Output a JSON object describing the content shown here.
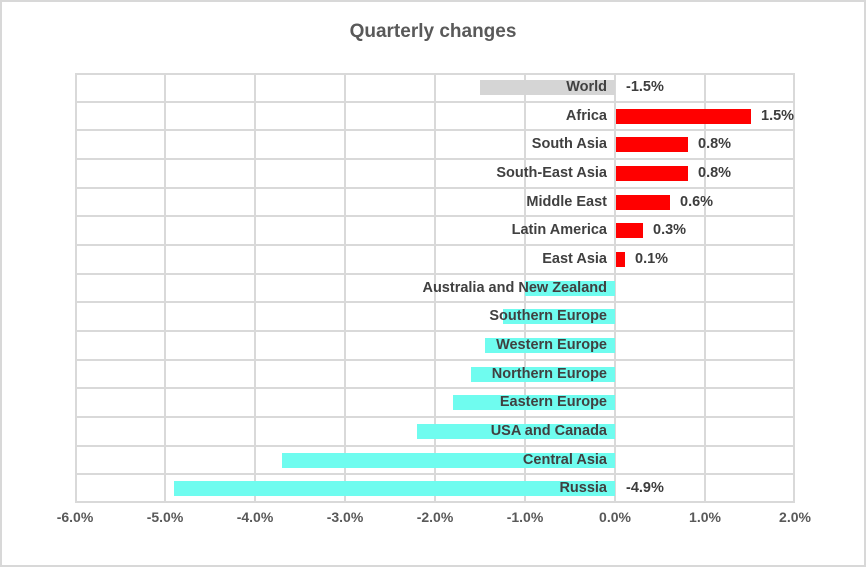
{
  "chart_data": {
    "type": "bar",
    "orientation": "horizontal",
    "title": "Quarterly changes",
    "categories": [
      "World",
      "Africa",
      "South Asia",
      "South-East Asia",
      "Middle East",
      "Latin America",
      "East Asia",
      "Australia and New Zealand",
      "Southern Europe",
      "Western Europe",
      "Northern Europe",
      "Eastern Europe",
      "USA and Canada",
      "Central Asia",
      "Russia"
    ],
    "values": [
      -1.5,
      1.5,
      0.8,
      0.8,
      0.6,
      0.3,
      0.1,
      -1.0,
      -1.25,
      -1.45,
      -1.6,
      -1.8,
      -2.2,
      -3.7,
      -4.9
    ],
    "data_labels": [
      "-1.5%",
      "1.5%",
      "0.8%",
      "0.8%",
      "0.6%",
      "0.3%",
      "0.1%",
      "",
      "",
      "",
      "",
      "",
      "",
      "",
      "-4.9%"
    ],
    "bar_colors": [
      "#d5d5d5",
      "#ff0000",
      "#ff0000",
      "#ff0000",
      "#ff0000",
      "#ff0000",
      "#ff0000",
      "#6ffcef",
      "#6ffcef",
      "#6ffcef",
      "#6ffcef",
      "#6ffcef",
      "#6ffcef",
      "#6ffcef",
      "#6ffcef"
    ],
    "xlim": [
      -6.0,
      2.0
    ],
    "x_ticks": [
      -6,
      -5,
      -4,
      -3,
      -2,
      -1,
      0,
      1,
      2
    ],
    "x_tick_labels": [
      "-6.0%",
      "-5.0%",
      "-4.0%",
      "-3.0%",
      "-2.0%",
      "-1.0%",
      "0.0%",
      "1.0%",
      "2.0%"
    ],
    "grid": true,
    "legend": "none",
    "colors": {
      "positive_bar": "#ff0000",
      "negative_bar": "#6ffcef",
      "world_bar": "#d5d5d5",
      "gridline": "#d9d9d9",
      "category_text": "#404040",
      "axis_text": "#595959",
      "title_text": "#595959"
    }
  }
}
